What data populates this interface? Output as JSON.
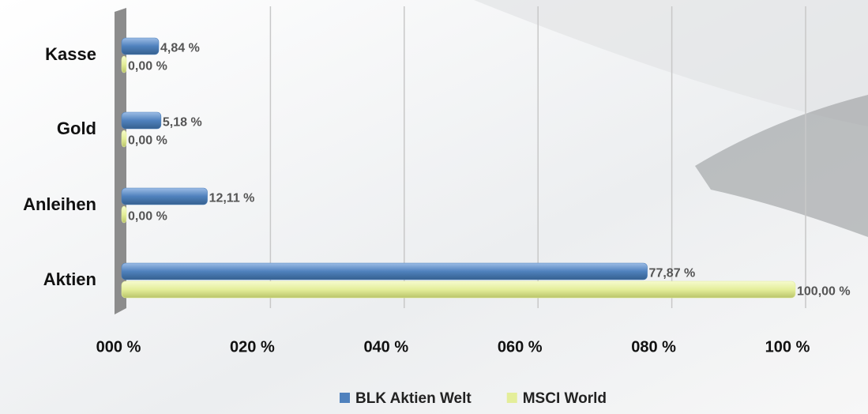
{
  "chart_data": {
    "type": "bar",
    "orientation": "horizontal",
    "categories": [
      "Kasse",
      "Gold",
      "Anleihen",
      "Aktien"
    ],
    "series": [
      {
        "name": "BLK Aktien Welt",
        "color": "#4f81bd",
        "values": [
          4.84,
          5.18,
          12.11,
          77.87
        ],
        "value_labels": [
          "4,84 %",
          "5,18 %",
          "12,11 %",
          "77,87 %"
        ]
      },
      {
        "name": "MSCI World",
        "color": "#e4ee9a",
        "values": [
          0,
          0,
          0,
          100
        ],
        "value_labels": [
          "0,00 %",
          "0,00 %",
          "0,00 %",
          "100,00 %"
        ]
      }
    ],
    "xlim": [
      0,
      100
    ],
    "xticks": [
      {
        "value": 0,
        "label": "000 %"
      },
      {
        "value": 20,
        "label": "020 %"
      },
      {
        "value": 40,
        "label": "040 %"
      },
      {
        "value": 60,
        "label": "060 %"
      },
      {
        "value": 80,
        "label": "080 %"
      },
      {
        "value": 100,
        "label": "100 %"
      }
    ],
    "grid": true,
    "legend": "bottom"
  }
}
